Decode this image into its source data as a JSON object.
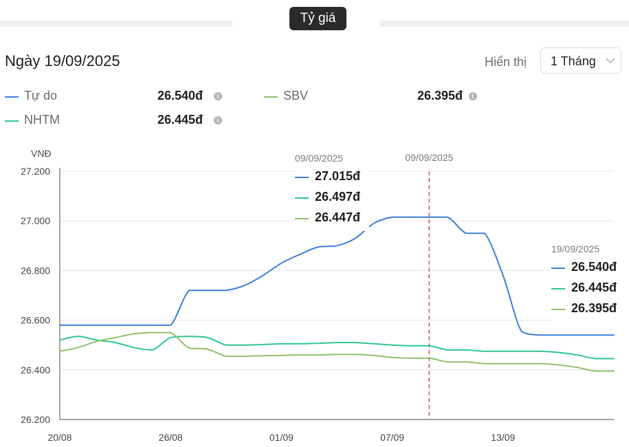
{
  "header": {
    "tab_label": "Tỷ giá",
    "date_title": "Ngày 19/09/2025",
    "display_label": "Hiển thị",
    "period_selected": "1 Tháng"
  },
  "legend": [
    {
      "name": "Tự do",
      "value": "26.540đ",
      "color": "#3b7dd8"
    },
    {
      "name": "SBV",
      "value": "26.395đ",
      "color": "#8ec06c"
    },
    {
      "name": "NHTM",
      "value": "26.445đ",
      "color": "#2dc792"
    }
  ],
  "tooltip_hover": {
    "date": "09/09/2025",
    "values": [
      "27.015đ",
      "26.497đ",
      "26.447đ"
    ]
  },
  "tooltip_end": {
    "date": "19/09/2025",
    "values": [
      "26.540đ",
      "26.445đ",
      "26.395đ"
    ]
  },
  "chart_data": {
    "type": "line",
    "title": "",
    "ylabel": "VNĐ",
    "xlabel": "",
    "ylim": [
      26200,
      27200
    ],
    "y_ticks": [
      26200,
      26400,
      26600,
      26800,
      27000,
      27200
    ],
    "y_tick_labels": [
      "26.200",
      "26.400",
      "26.600",
      "26.800",
      "27.000",
      "27.200"
    ],
    "x_tick_labels": [
      "20/08",
      "26/08",
      "01/09",
      "07/09",
      "13/09"
    ],
    "x_tick_index": [
      0,
      6,
      12,
      18,
      24
    ],
    "x": [
      "20/08",
      "21/08",
      "22/08",
      "23/08",
      "24/08",
      "25/08",
      "26/08",
      "27/08",
      "28/08",
      "29/08",
      "30/08",
      "31/08",
      "01/09",
      "02/09",
      "03/09",
      "04/09",
      "05/09",
      "06/09",
      "07/09",
      "08/09",
      "09/09",
      "10/09",
      "11/09",
      "12/09",
      "13/09",
      "14/09",
      "15/09",
      "16/09",
      "17/09",
      "18/09",
      "19/09"
    ],
    "highlight_label": "09/09/2025",
    "highlight_index": 20,
    "grid": true,
    "series": [
      {
        "name": "Tự do",
        "color": "#3b7dd8",
        "values": [
          26580,
          26580,
          26580,
          26580,
          26580,
          26580,
          26580,
          26720,
          26720,
          26720,
          26740,
          26780,
          26830,
          26865,
          26895,
          26900,
          26930,
          26990,
          27015,
          27015,
          27015,
          27015,
          26950,
          26950,
          26780,
          26555,
          26540,
          26540,
          26540,
          26540,
          26540
        ]
      },
      {
        "name": "NHTM",
        "color": "#2dc792",
        "values": [
          26520,
          26535,
          26520,
          26510,
          26490,
          26480,
          26530,
          26535,
          26530,
          26500,
          26500,
          26502,
          26505,
          26505,
          26507,
          26510,
          26510,
          26505,
          26500,
          26497,
          26497,
          26480,
          26480,
          26475,
          26475,
          26475,
          26475,
          26470,
          26460,
          26445,
          26445
        ]
      },
      {
        "name": "SBV",
        "color": "#8ec06c",
        "values": [
          26475,
          26490,
          26515,
          26530,
          26545,
          26550,
          26550,
          26488,
          26483,
          26455,
          26455,
          26457,
          26458,
          26460,
          26460,
          26462,
          26462,
          26458,
          26450,
          26447,
          26447,
          26432,
          26432,
          26425,
          26425,
          26425,
          26425,
          26420,
          26410,
          26395,
          26395
        ]
      }
    ]
  }
}
